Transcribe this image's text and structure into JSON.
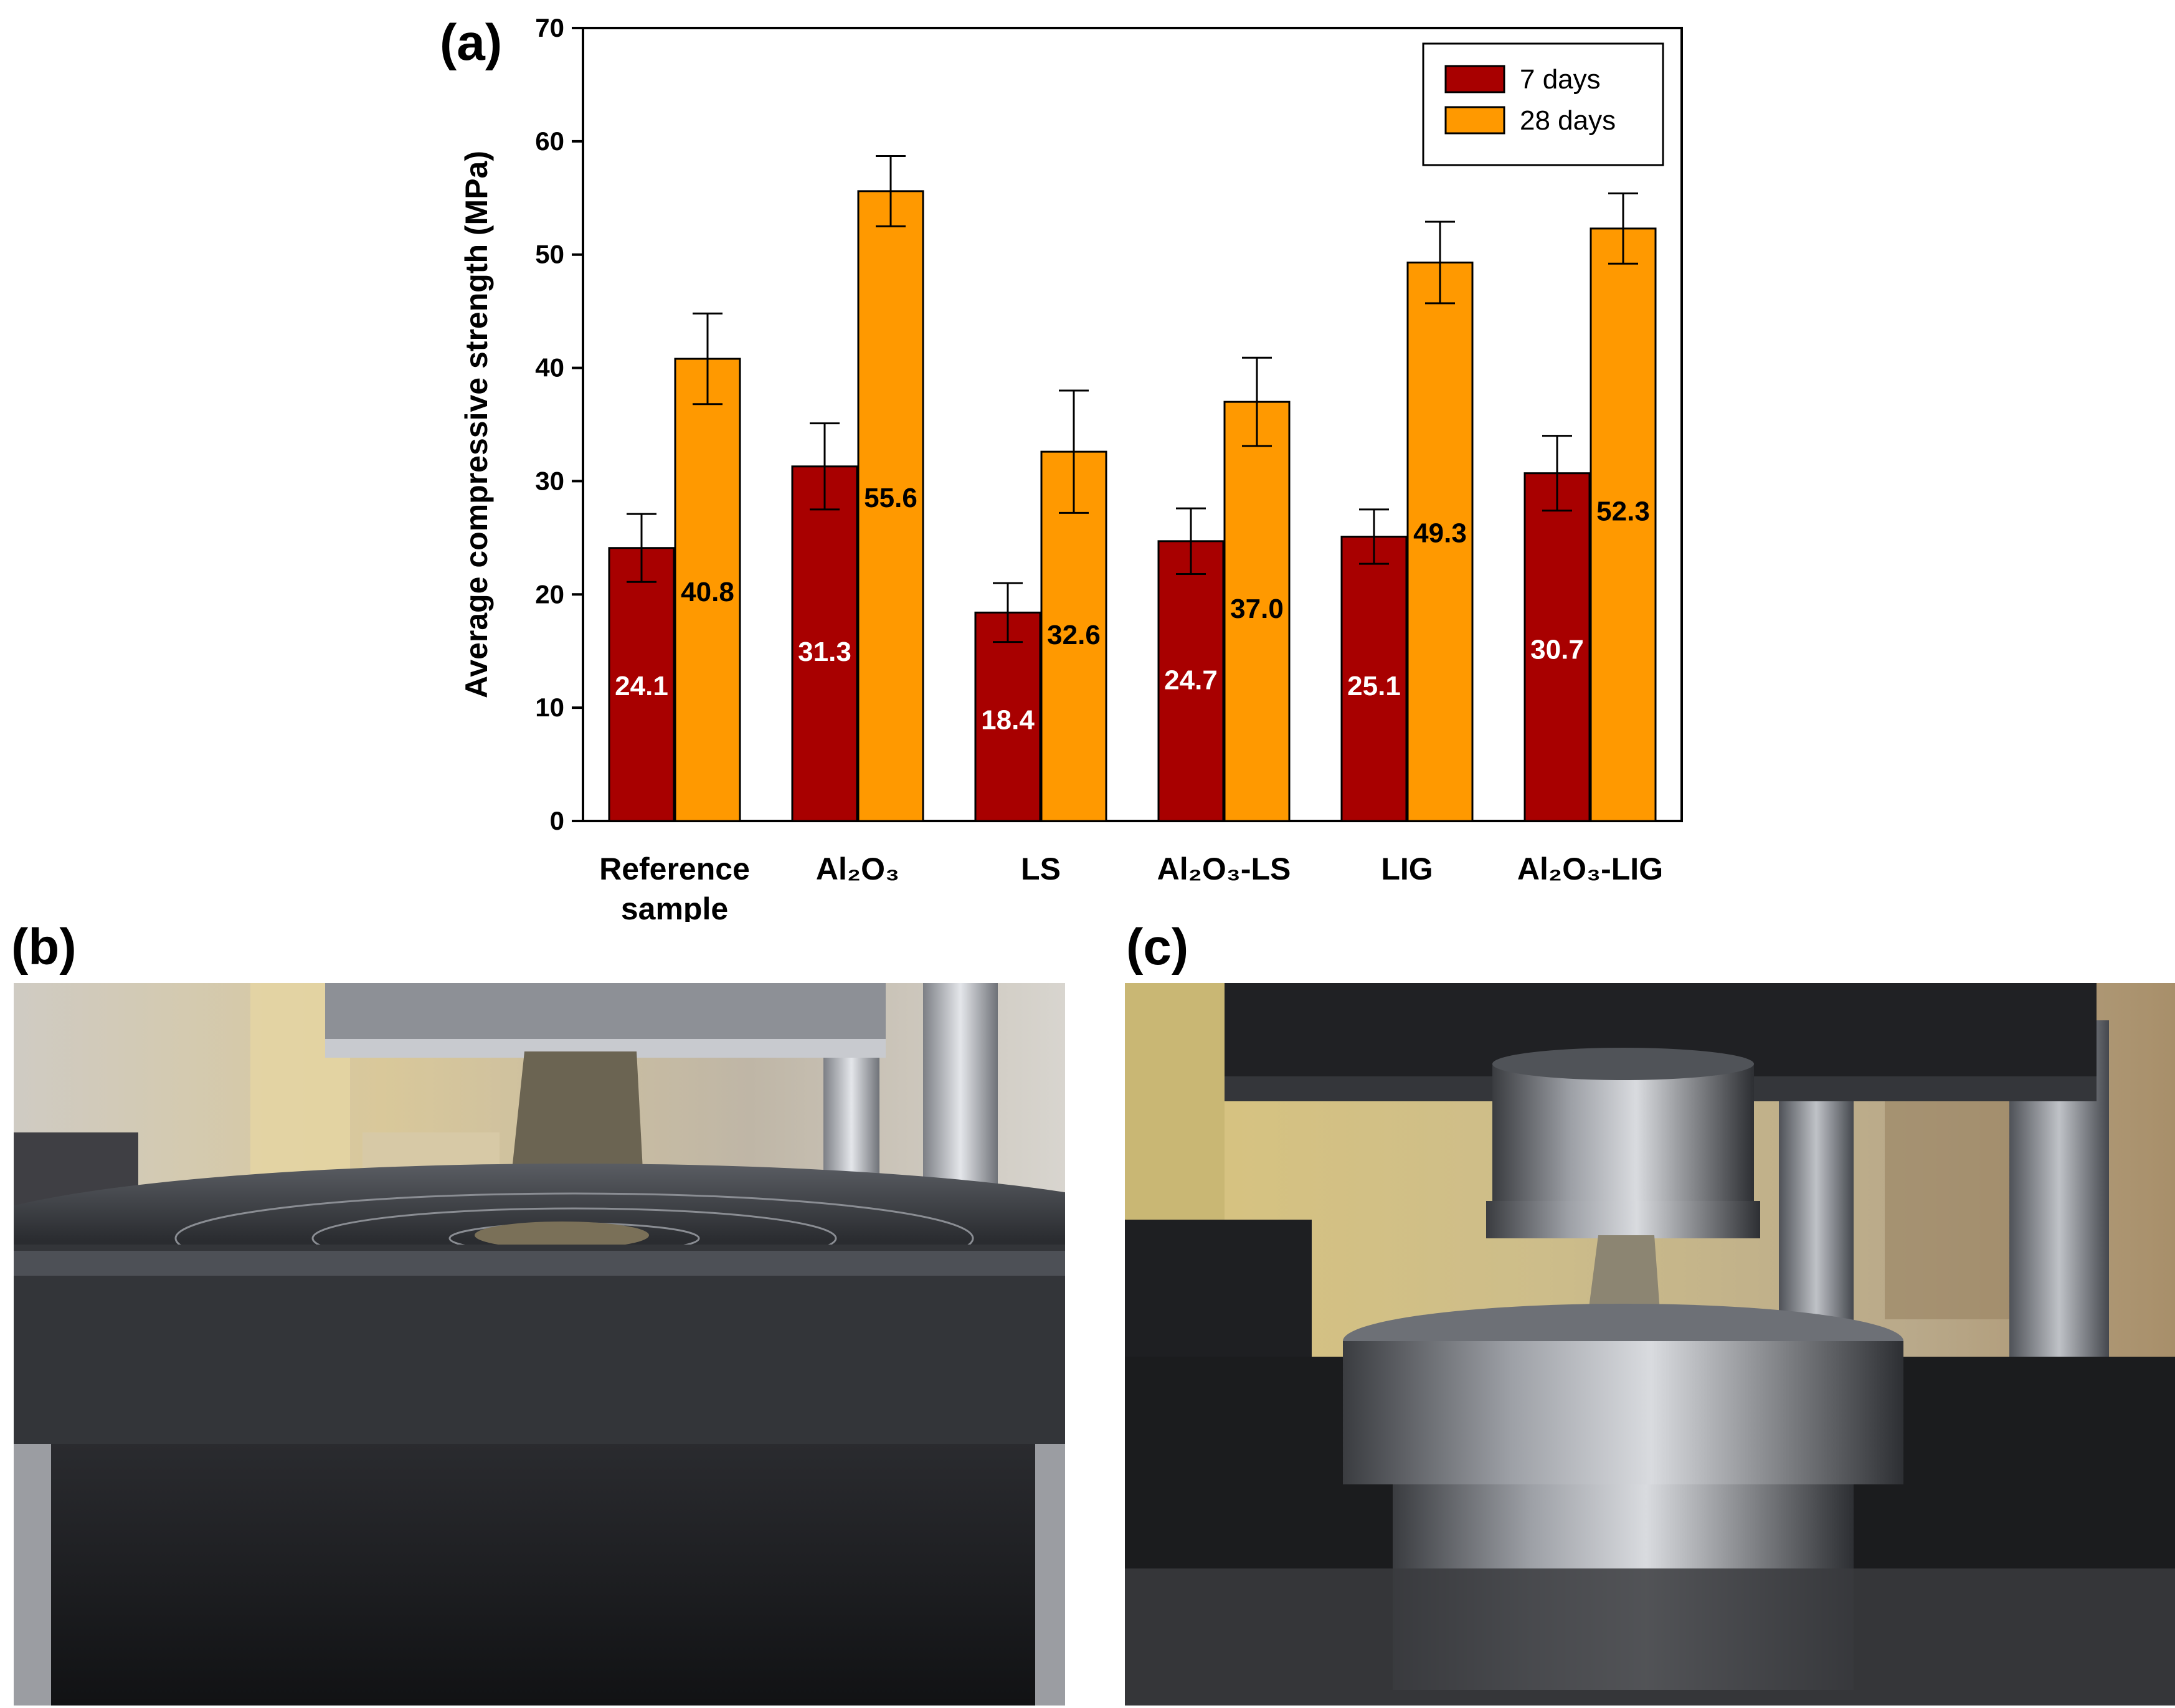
{
  "panels": {
    "a_label": "(a)",
    "b_label": "(b)",
    "c_label": "(c)"
  },
  "photos": {
    "b_description_icon": "compression-test-photo-icon",
    "c_description_icon": "compression-test-photo-icon"
  },
  "colors": {
    "series_7_days": "#a80000",
    "series_28_days": "#ff9900",
    "axis": "#000000",
    "label_white": "#ffffff",
    "label_black": "#000000"
  },
  "chart_data": {
    "type": "bar",
    "title": "",
    "xlabel": "",
    "ylabel": "Average compressive strength (MPa)",
    "ylim": [
      0,
      70
    ],
    "yticks": [
      0,
      10,
      20,
      30,
      40,
      50,
      60,
      70
    ],
    "ytick_labels": [
      "0",
      "10",
      "20",
      "30",
      "40",
      "50",
      "60",
      "70"
    ],
    "categories": [
      [
        "Reference",
        "sample"
      ],
      [
        "Al₂O₃"
      ],
      [
        "LS"
      ],
      [
        "Al₂O₃-LS"
      ],
      [
        "LIG"
      ],
      [
        "Al₂O₃-LIG"
      ]
    ],
    "legend_position": "top-right",
    "series": [
      {
        "name": "7 days",
        "values": [
          24.1,
          31.3,
          18.4,
          24.7,
          25.1,
          30.7
        ],
        "errors": [
          3.0,
          3.8,
          2.6,
          2.9,
          2.4,
          3.3
        ],
        "labels": [
          "24.1",
          "31.3",
          "18.4",
          "24.7",
          "25.1",
          "30.7"
        ],
        "label_y": [
          12,
          15,
          9,
          12.5,
          12,
          15.2
        ]
      },
      {
        "name": "28 days",
        "values": [
          40.8,
          55.6,
          32.6,
          37.0,
          49.3,
          52.3
        ],
        "errors": [
          4.0,
          3.1,
          5.4,
          3.9,
          3.6,
          3.1
        ],
        "labels": [
          "40.8",
          "55.6",
          "32.6",
          "37.0",
          "49.3",
          "52.3"
        ],
        "label_y": [
          20.3,
          28.6,
          16.5,
          18.8,
          25.5,
          27.4
        ]
      }
    ]
  }
}
